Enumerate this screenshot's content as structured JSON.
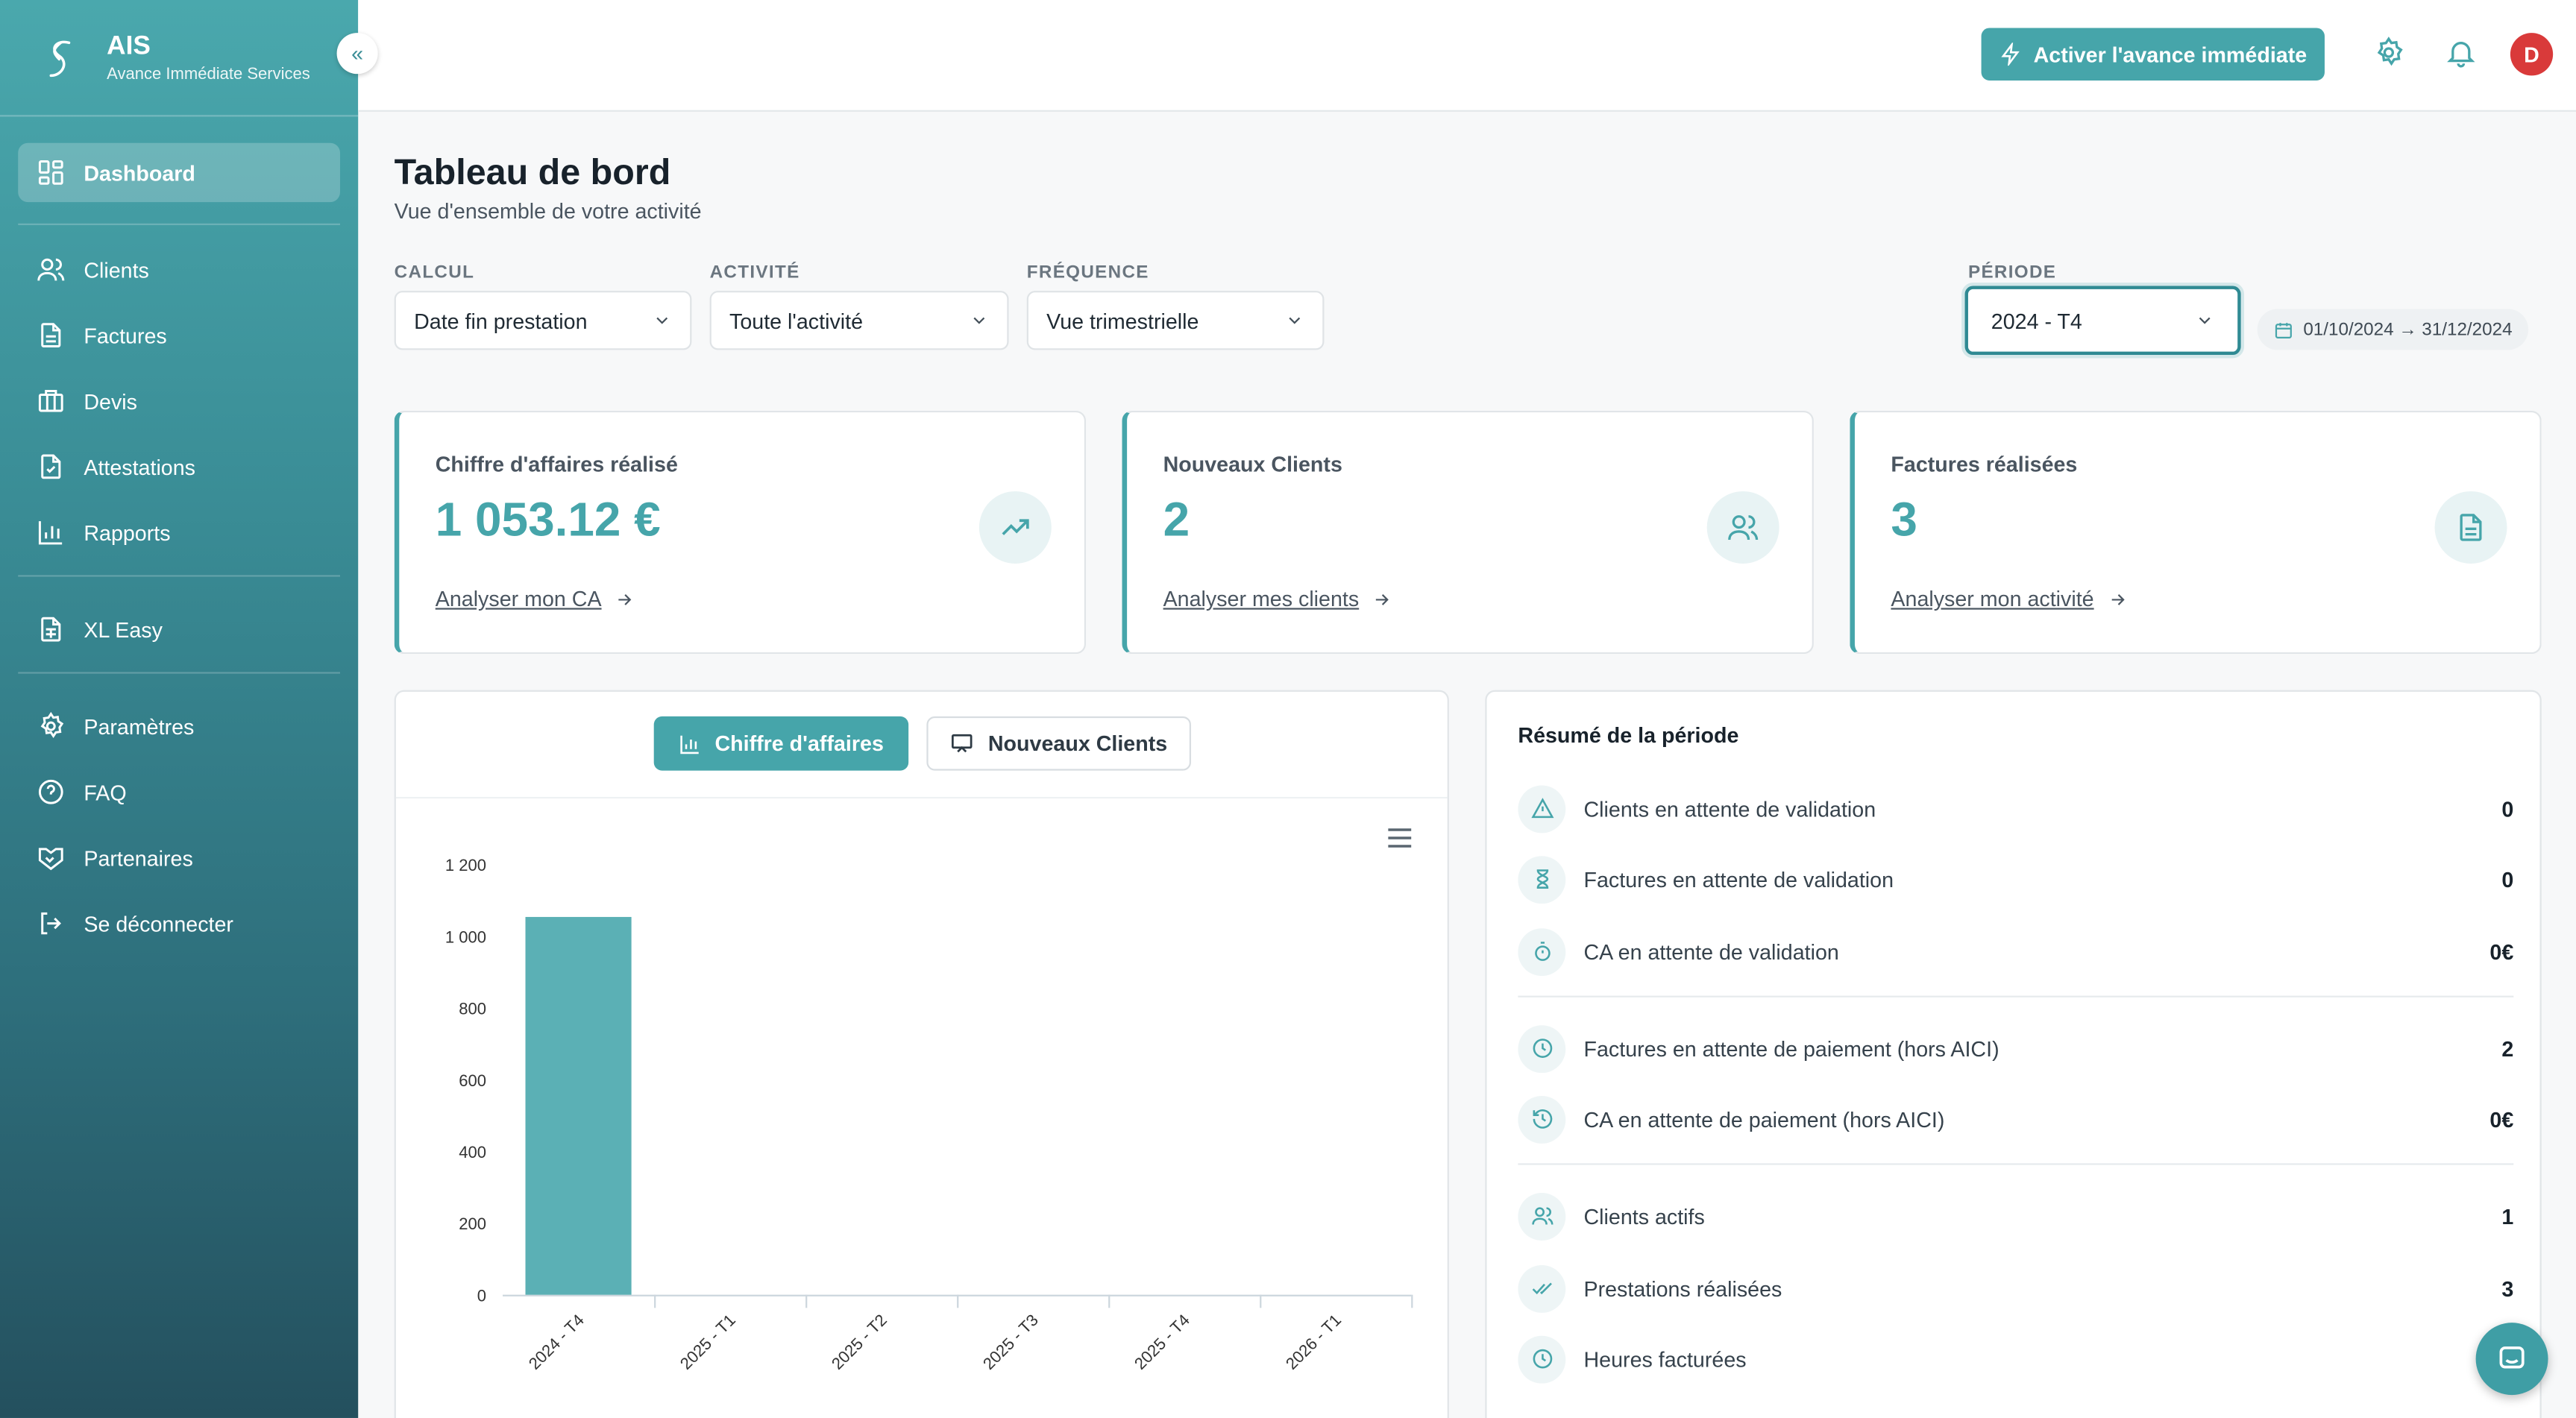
{
  "brand": {
    "name": "AIS",
    "subtitle": "Avance Immédiate Services"
  },
  "sidebar": {
    "items": [
      {
        "label": "Dashboard",
        "icon": "dashboard-icon"
      },
      {
        "label": "Clients",
        "icon": "users-icon"
      },
      {
        "label": "Factures",
        "icon": "document-icon"
      },
      {
        "label": "Devis",
        "icon": "briefcase-icon"
      },
      {
        "label": "Attestations",
        "icon": "file-check-icon"
      },
      {
        "label": "Rapports",
        "icon": "bar-chart-icon"
      },
      {
        "label": "XL Easy",
        "icon": "spreadsheet-icon"
      },
      {
        "label": "Paramètres",
        "icon": "gear-icon"
      },
      {
        "label": "FAQ",
        "icon": "help-circle-icon"
      },
      {
        "label": "Partenaires",
        "icon": "handshake-icon"
      },
      {
        "label": "Se déconnecter",
        "icon": "logout-icon"
      }
    ]
  },
  "topbar": {
    "activate_label": "Activer l'avance immédiate",
    "avatar_initial": "D"
  },
  "header": {
    "title": "Tableau de bord",
    "subtitle": "Vue d'ensemble de votre activité"
  },
  "filters": {
    "calcul": {
      "label": "CALCUL",
      "value": "Date fin prestation"
    },
    "activite": {
      "label": "ACTIVITÉ",
      "value": "Toute l'activité"
    },
    "frequence": {
      "label": "FRÉQUENCE",
      "value": "Vue trimestrielle"
    },
    "periode": {
      "label": "PÉRIODE",
      "value": "2024 - T4"
    },
    "date_range": "01/10/2024 → 31/12/2024"
  },
  "kpis": [
    {
      "label": "Chiffre d'affaires réalisé",
      "value": "1 053.12 €",
      "link": "Analyser mon CA",
      "icon": "trending-up-icon"
    },
    {
      "label": "Nouveaux Clients",
      "value": "2",
      "link": "Analyser mes clients",
      "icon": "users-icon"
    },
    {
      "label": "Factures réalisées",
      "value": "3",
      "link": "Analyser mon activité",
      "icon": "document-icon"
    }
  ],
  "chart_tabs": {
    "active": "Chiffre d'affaires",
    "inactive": "Nouveaux Clients"
  },
  "chart_data": {
    "type": "bar",
    "categories": [
      "2024 - T4",
      "2025 - T1",
      "2025 - T2",
      "2025 - T3",
      "2025 - T4",
      "2026 - T1"
    ],
    "values": [
      1053.12,
      0,
      0,
      0,
      0,
      0
    ],
    "ylim": [
      0,
      1200
    ],
    "yticks": [
      0,
      200,
      400,
      600,
      800,
      1000,
      1200
    ],
    "ytick_labels": [
      "0",
      "200",
      "400",
      "600",
      "800",
      "1 000",
      "1 200"
    ],
    "bar_color": "#5bb0b5",
    "grid": false,
    "legend": "none"
  },
  "summary": {
    "title": "Résumé de la période",
    "rows": [
      {
        "label": "Clients en attente de validation",
        "value": "0",
        "icon": "warning-icon"
      },
      {
        "label": "Factures en attente de validation",
        "value": "0",
        "icon": "hourglass-icon"
      },
      {
        "label": "CA en attente de validation",
        "value": "0€",
        "icon": "stopwatch-icon"
      },
      {
        "label": "Factures en attente de paiement (hors AICI)",
        "value": "2",
        "icon": "clock-icon"
      },
      {
        "label": "CA en attente de paiement (hors AICI)",
        "value": "0€",
        "icon": "history-icon"
      },
      {
        "label": "Clients actifs",
        "value": "1",
        "icon": "users-icon"
      },
      {
        "label": "Prestations réalisées",
        "value": "3",
        "icon": "double-check-icon"
      },
      {
        "label": "Heures facturées",
        "value": "",
        "icon": "clock-icon"
      }
    ]
  },
  "colors": {
    "accent": "#46a5aa",
    "avatar": "#d93a3a"
  }
}
